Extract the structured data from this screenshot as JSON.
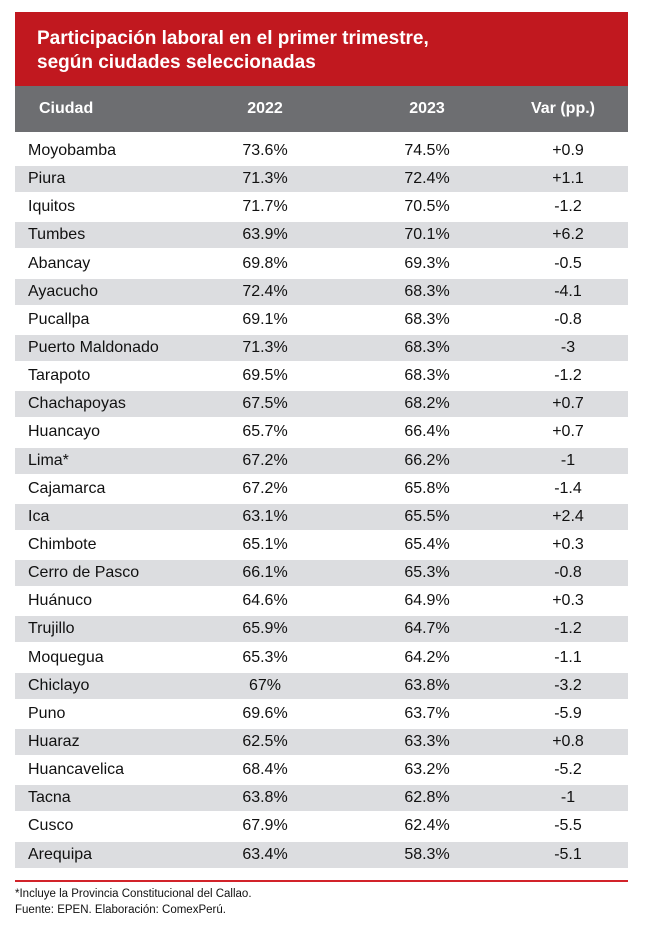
{
  "title_line1": "Participación laboral en el primer trimestre,",
  "title_line2": "según ciudades seleccionadas",
  "chart_data": {
    "type": "table",
    "title": "Participación laboral en el primer trimestre, según ciudades seleccionadas",
    "columns": [
      "Ciudad",
      "2022",
      "2023",
      "Var (pp.)"
    ],
    "rows": [
      [
        "Moyobamba",
        "73.6%",
        "74.5%",
        "+0.9"
      ],
      [
        "Piura",
        "71.3%",
        "72.4%",
        "+1.1"
      ],
      [
        "Iquitos",
        "71.7%",
        "70.5%",
        "-1.2"
      ],
      [
        "Tumbes",
        "63.9%",
        "70.1%",
        "+6.2"
      ],
      [
        "Abancay",
        "69.8%",
        "69.3%",
        "-0.5"
      ],
      [
        "Ayacucho",
        "72.4%",
        "68.3%",
        "-4.1"
      ],
      [
        "Pucallpa",
        "69.1%",
        "68.3%",
        "-0.8"
      ],
      [
        "Puerto Maldonado",
        "71.3%",
        "68.3%",
        "-3"
      ],
      [
        "Tarapoto",
        "69.5%",
        "68.3%",
        "-1.2"
      ],
      [
        "Chachapoyas",
        "67.5%",
        "68.2%",
        "+0.7"
      ],
      [
        "Huancayo",
        "65.7%",
        "66.4%",
        "+0.7"
      ],
      [
        "Lima*",
        "67.2%",
        "66.2%",
        "-1"
      ],
      [
        "Cajamarca",
        "67.2%",
        "65.8%",
        "-1.4"
      ],
      [
        "Ica",
        "63.1%",
        "65.5%",
        "+2.4"
      ],
      [
        "Chimbote",
        "65.1%",
        "65.4%",
        "+0.3"
      ],
      [
        "Cerro de Pasco",
        "66.1%",
        "65.3%",
        "-0.8"
      ],
      [
        "Huánuco",
        "64.6%",
        "64.9%",
        "+0.3"
      ],
      [
        "Trujillo",
        "65.9%",
        "64.7%",
        "-1.2"
      ],
      [
        "Moquegua",
        "65.3%",
        "64.2%",
        "-1.1"
      ],
      [
        "Chiclayo",
        "67%",
        "63.8%",
        "-3.2"
      ],
      [
        "Puno",
        "69.6%",
        "63.7%",
        "-5.9"
      ],
      [
        "Huaraz",
        "62.5%",
        "63.3%",
        "+0.8"
      ],
      [
        "Huancavelica",
        "68.4%",
        "63.2%",
        "-5.2"
      ],
      [
        "Tacna",
        "63.8%",
        "62.8%",
        "-1"
      ],
      [
        "Cusco",
        "67.9%",
        "62.4%",
        "-5.5"
      ],
      [
        "Arequipa",
        "63.4%",
        "58.3%",
        "-5.1"
      ]
    ]
  },
  "footnote": "*Incluye la Provincia Constitucional del Callao.",
  "source": "Fuente: EPEN. Elaboración: ComexPerú.",
  "colors": {
    "title_bg": "#c1181f",
    "header_bg": "#6d6e71",
    "stripe": "#dcdde0"
  }
}
